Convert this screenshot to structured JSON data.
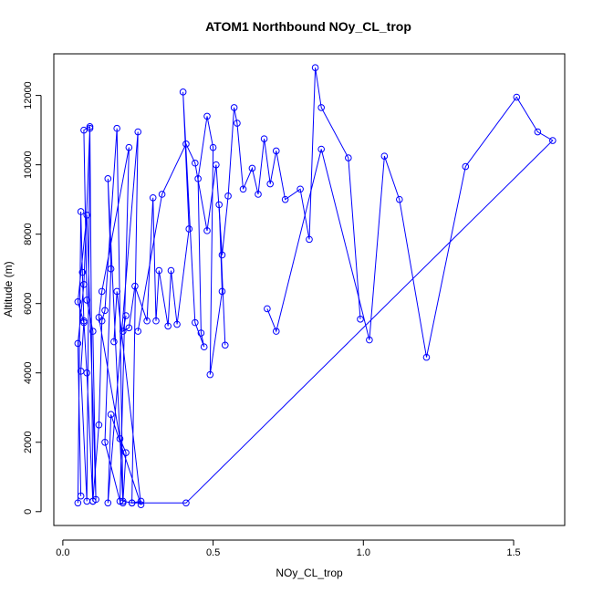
{
  "chart_data": {
    "type": "line",
    "title": "ATOM1 Northbound NOy_CL_trop",
    "xlabel": "NOy_CL_trop",
    "ylabel": "Altitude (m)",
    "xlim": [
      -0.03,
      1.67
    ],
    "ylim": [
      -400,
      13200
    ],
    "xticks": [
      "0.0",
      "0.5",
      "1.0",
      "1.5"
    ],
    "xtick_values": [
      0,
      0.5,
      1.0,
      1.5
    ],
    "yticks": [
      "0",
      "2000",
      "4000",
      "6000",
      "8000",
      "10000",
      "12000"
    ],
    "ytick_values": [
      0,
      2000,
      4000,
      6000,
      8000,
      10000,
      12000
    ],
    "series_color": "#0000FF",
    "markers": "open-circle",
    "grid": false,
    "series": [
      {
        "x": [
          0.05,
          0.06,
          0.065,
          0.07,
          0.08,
          0.1,
          0.09,
          0.07,
          0.08,
          0.1,
          0.11,
          0.08,
          0.05,
          0.07,
          0.06,
          0.08,
          0.09,
          0.07,
          0.05,
          0.06
        ],
        "y": [
          250,
          8650,
          6900,
          5500,
          4000,
          300,
          11100,
          11000,
          6100,
          5200,
          350,
          8550,
          6050,
          5450,
          4050,
          300,
          11050,
          6550,
          4850,
          450
        ]
      },
      {
        "x": [
          0.1,
          0.12,
          0.13,
          0.14,
          0.18,
          0.2,
          0.15,
          0.16,
          0.14,
          0.19,
          0.22,
          0.13,
          0.12,
          0.19,
          0.21,
          0.2,
          0.23,
          0.25,
          0.15,
          0.16,
          0.26,
          0.18,
          0.17
        ],
        "y": [
          300,
          2500,
          5500,
          5800,
          11050,
          250,
          9600,
          7000,
          2000,
          300,
          10500,
          6350,
          5600,
          2100,
          1700,
          300,
          250,
          10950,
          250,
          2800,
          200,
          6350,
          4900
        ]
      },
      {
        "x": [
          0.21,
          0.2,
          0.22,
          0.24,
          0.28,
          0.3,
          0.31,
          0.32,
          0.35,
          0.36,
          0.38,
          0.42,
          0.4,
          0.44,
          0.47,
          0.46,
          0.45,
          0.48,
          0.5,
          0.49,
          0.53,
          0.52,
          0.54
        ],
        "y": [
          5650,
          5200,
          5300,
          6500,
          5500,
          9050,
          5500,
          6950,
          5350,
          6950,
          5400,
          8150,
          12100,
          5450,
          4750,
          5150,
          9600,
          11400,
          10500,
          3950,
          6350,
          8850,
          4800
        ]
      },
      {
        "x": [
          0.25,
          0.33,
          0.41,
          0.44,
          0.48,
          0.51,
          0.53,
          0.55,
          0.57,
          0.58,
          0.6,
          0.63,
          0.65,
          0.67,
          0.69,
          0.71,
          0.74,
          0.79,
          0.82,
          0.84,
          0.86,
          0.95,
          0.99
        ],
        "y": [
          5200,
          9150,
          10600,
          10050,
          8100,
          10000,
          7400,
          9100,
          11650,
          11200,
          9300,
          9900,
          9150,
          10750,
          9450,
          10400,
          9000,
          9300,
          7850,
          12800,
          11650,
          10200,
          5550
        ]
      },
      {
        "x": [
          0.68,
          0.71,
          0.86,
          1.02,
          1.07,
          1.12,
          1.21,
          1.34,
          1.51,
          1.58,
          1.63,
          0.41,
          0.23,
          0.26
        ],
        "y": [
          5850,
          5200,
          10450,
          4950,
          10250,
          9000,
          4450,
          9950,
          11950,
          10950,
          10700,
          250,
          250,
          300
        ]
      }
    ]
  }
}
